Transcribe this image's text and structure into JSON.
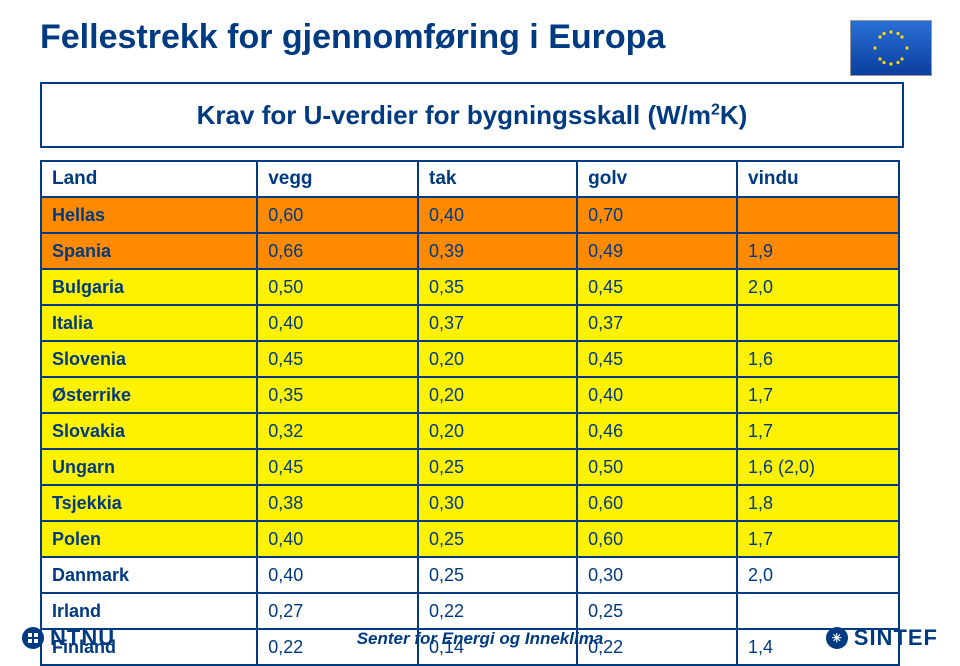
{
  "title": "Fellestrekk for gjennomføring i Europa",
  "subtitle_prefix": "Krav for U-verdier for bygningsskall (W/m",
  "subtitle_exp": "2",
  "subtitle_suffix": "K)",
  "table": {
    "header_bg": "#ffffff",
    "text_color": "#003a80",
    "border_color": "#003a80",
    "columns": [
      "Land",
      "vegg",
      "tak",
      "golv",
      "vindu"
    ],
    "row_colors": {
      "orange": "#ff8a00",
      "yellow": "#fff200",
      "white": "#ffffff"
    },
    "rows": [
      {
        "bg": "#ff8a00",
        "cells": [
          "Hellas",
          "0,60",
          "0,40",
          "0,70",
          ""
        ]
      },
      {
        "bg": "#ff8a00",
        "cells": [
          "Spania",
          "0,66",
          "0,39",
          "0,49",
          "1,9"
        ]
      },
      {
        "bg": "#fff200",
        "cells": [
          "Bulgaria",
          "0,50",
          "0,35",
          "0,45",
          "2,0"
        ]
      },
      {
        "bg": "#fff200",
        "cells": [
          "Italia",
          "0,40",
          "0,37",
          "0,37",
          ""
        ]
      },
      {
        "bg": "#fff200",
        "cells": [
          "Slovenia",
          "0,45",
          "0,20",
          "0,45",
          "1,6"
        ]
      },
      {
        "bg": "#fff200",
        "cells": [
          "Østerrike",
          "0,35",
          "0,20",
          "0,40",
          "1,7"
        ]
      },
      {
        "bg": "#fff200",
        "cells": [
          "Slovakia",
          "0,32",
          "0,20",
          "0,46",
          "1,7"
        ]
      },
      {
        "bg": "#fff200",
        "cells": [
          "Ungarn",
          "0,45",
          "0,25",
          "0,50",
          "1,6 (2,0)"
        ]
      },
      {
        "bg": "#fff200",
        "cells": [
          "Tsjekkia",
          "0,38",
          "0,30",
          "0,60",
          "1,8"
        ]
      },
      {
        "bg": "#fff200",
        "cells": [
          "Polen",
          "0,40",
          "0,25",
          "0,60",
          "1,7"
        ]
      },
      {
        "bg": "#ffffff",
        "cells": [
          "Danmark",
          "0,40",
          "0,25",
          "0,30",
          "2,0"
        ]
      },
      {
        "bg": "#ffffff",
        "cells": [
          "Irland",
          "0,27",
          "0,22",
          "0,25",
          ""
        ]
      },
      {
        "bg": "#ffffff",
        "cells": [
          "Finland",
          "0,22",
          "0,14",
          "0,22",
          "1,4"
        ]
      }
    ]
  },
  "footer": {
    "ntnu": "NTNU",
    "center": "Senter for Energi og Inneklima",
    "sintef": "SINTEF"
  }
}
